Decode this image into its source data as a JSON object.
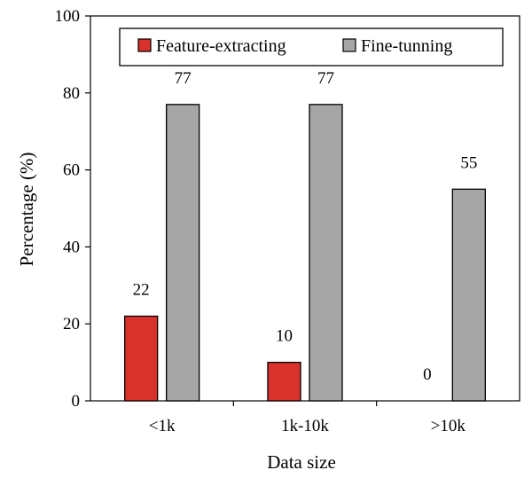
{
  "chart_data": {
    "type": "bar",
    "title": "",
    "xlabel": "Data size",
    "ylabel": "Percentage (%)",
    "categories": [
      "<1k",
      "1k-10k",
      ">10k"
    ],
    "ylim": [
      0,
      100
    ],
    "yticks": [
      0,
      20,
      40,
      60,
      80,
      100
    ],
    "grid": false,
    "legend_position": "top",
    "series": [
      {
        "name": "Feature-extracting",
        "values": [
          22,
          10,
          0
        ],
        "color": "#D9312B"
      },
      {
        "name": "Fine-tunning",
        "values": [
          77,
          77,
          55
        ],
        "color": "#A6A6A6"
      }
    ],
    "data_labels": true
  }
}
